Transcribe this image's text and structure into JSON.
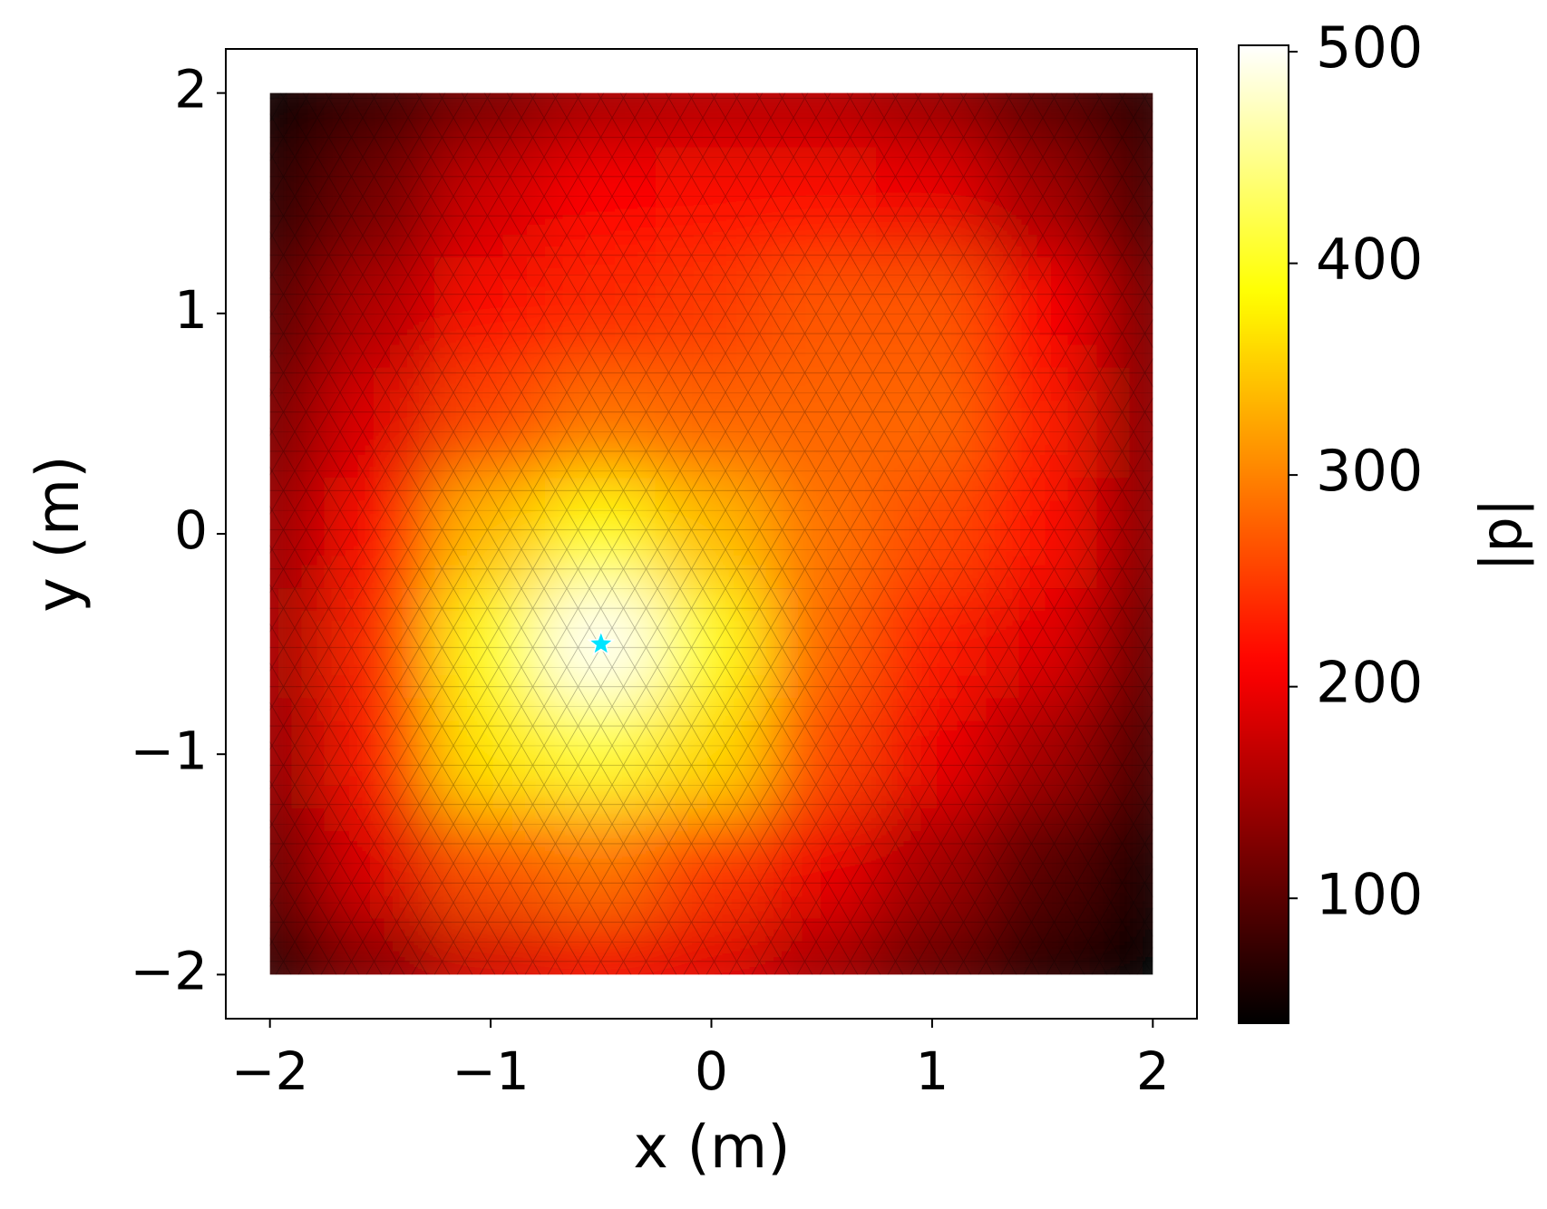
{
  "chart_data": {
    "type": "heatmap",
    "xlabel": "x (m)",
    "ylabel": "y (m)",
    "colorbar_label": "|p|",
    "colormap": "hot",
    "x": [
      -2,
      -1.5,
      -1,
      -0.5,
      0,
      0.5,
      1,
      1.5,
      2
    ],
    "y": [
      2,
      1.5,
      1,
      0.5,
      0,
      -0.5,
      -1,
      -1.5,
      -2
    ],
    "z": [
      [
        45,
        80,
        120,
        150,
        160,
        160,
        140,
        100,
        70
      ],
      [
        70,
        120,
        180,
        210,
        215,
        215,
        200,
        150,
        90
      ],
      [
        100,
        160,
        220,
        240,
        250,
        270,
        270,
        210,
        120
      ],
      [
        120,
        190,
        260,
        290,
        280,
        280,
        280,
        230,
        130
      ],
      [
        140,
        220,
        340,
        390,
        340,
        290,
        260,
        220,
        130
      ],
      [
        150,
        240,
        400,
        500,
        400,
        280,
        230,
        190,
        110
      ],
      [
        140,
        230,
        370,
        410,
        360,
        260,
        200,
        150,
        90
      ],
      [
        110,
        190,
        270,
        290,
        250,
        200,
        150,
        100,
        60
      ],
      [
        70,
        130,
        180,
        200,
        190,
        150,
        110,
        70,
        45
      ]
    ],
    "source": {
      "x": -0.5,
      "y": -0.5,
      "color": "#00e5ff"
    },
    "xlim": [
      -2.2,
      2.2
    ],
    "ylim": [
      -2.2,
      2.2
    ],
    "xticks": [
      {
        "value": -2,
        "label": "−2"
      },
      {
        "value": -1,
        "label": "−1"
      },
      0,
      1,
      2
    ],
    "yticks": [
      {
        "value": -2,
        "label": "−2"
      },
      {
        "value": -1,
        "label": "−1"
      },
      0,
      1,
      2
    ],
    "clim": [
      41,
      503
    ],
    "cticks": [
      100,
      200,
      300,
      400,
      500
    ]
  }
}
